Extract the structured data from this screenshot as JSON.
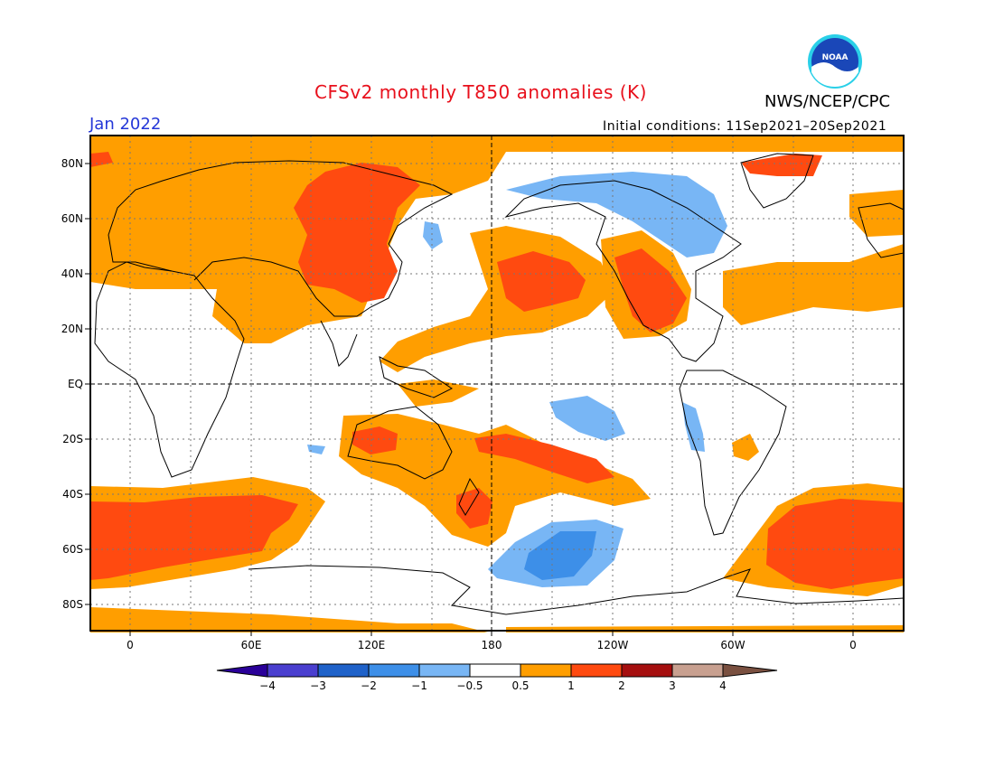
{
  "title": "CFSv2 monthly T850 anomalies (K)",
  "agency": "NWS/NCEP/CPC",
  "logo_text": "NOAA",
  "month_label": "Jan 2022",
  "initial_conditions": "Initial conditions: 11Sep2021–20Sep2021",
  "lat_labels": [
    "80N",
    "60N",
    "40N",
    "20N",
    "EQ",
    "20S",
    "40S",
    "60S",
    "80S"
  ],
  "lon_labels": [
    "0",
    "60E",
    "120E",
    "180",
    "120W",
    "60W",
    "0"
  ],
  "colorbar": {
    "labels": [
      "−4",
      "−3",
      "−2",
      "−1",
      "−0.5",
      "0.5",
      "1",
      "2",
      "3",
      "4"
    ],
    "colors": [
      "#2a0099",
      "#4a3fcf",
      "#1f62c9",
      "#3d8fe8",
      "#78b6f5",
      "#ffffff",
      "#ff9e00",
      "#ff4a10",
      "#a50f0f",
      "#c8a090",
      "#7a5040"
    ]
  },
  "field_colors": {
    "warm_05_1": "#ff9e00",
    "warm_1_2": "#ff4a10",
    "cool_05_1": "#78b6f5",
    "cool_1_2": "#3d8fe8"
  }
}
